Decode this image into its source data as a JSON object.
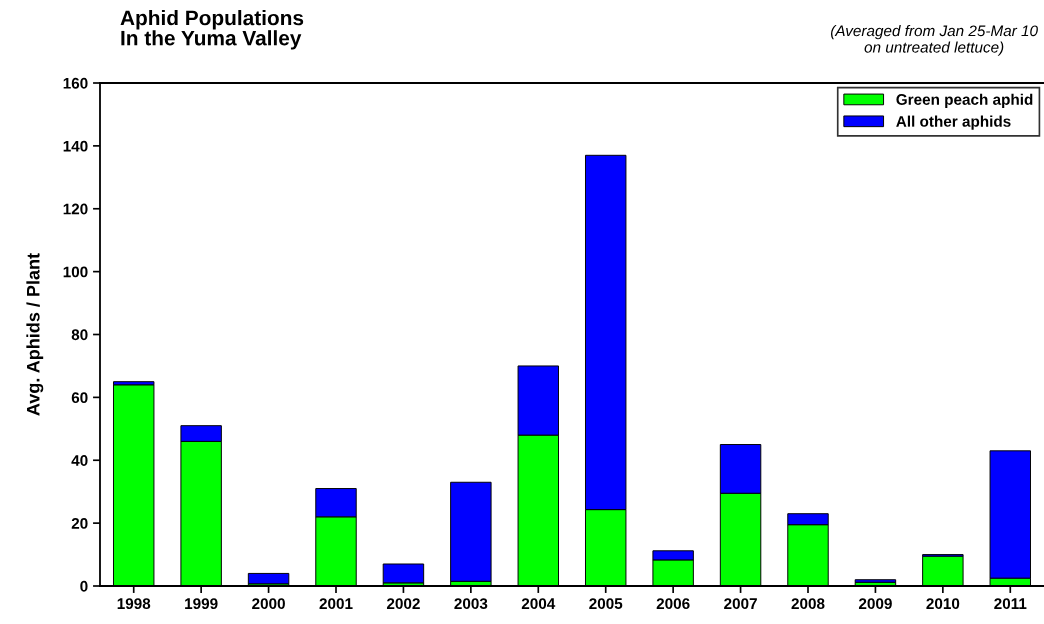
{
  "chart_data": {
    "type": "bar",
    "stacked": true,
    "title": "Aphid Populations\nIn the Yuma Valley",
    "subtitle": "(Averaged from Jan 25-Mar 10\non untreated lettuce)",
    "ylabel": "Avg. Aphids / Plant",
    "categories": [
      "1998",
      "1999",
      "2000",
      "2001",
      "2002",
      "2003",
      "2004",
      "2005",
      "2006",
      "2007",
      "2008",
      "2009",
      "2010",
      "2011"
    ],
    "series": [
      {
        "name": "Green peach aphid",
        "color": "#00ff00",
        "values": [
          64,
          46,
          0.7,
          22,
          1,
          1.5,
          48,
          24.3,
          8.3,
          29.5,
          19.5,
          1.2,
          9.5,
          2.5
        ]
      },
      {
        "name": "All other aphids",
        "color": "#0000ff",
        "values": [
          1,
          5,
          3.3,
          9,
          6,
          31.5,
          22,
          112.7,
          2.9,
          15.5,
          3.5,
          0.8,
          0.5,
          40.5
        ]
      }
    ],
    "ylim": [
      0,
      160
    ],
    "yticks": [
      0,
      20,
      40,
      60,
      80,
      100,
      120,
      140,
      160
    ],
    "grid": false,
    "legend": "top right"
  }
}
